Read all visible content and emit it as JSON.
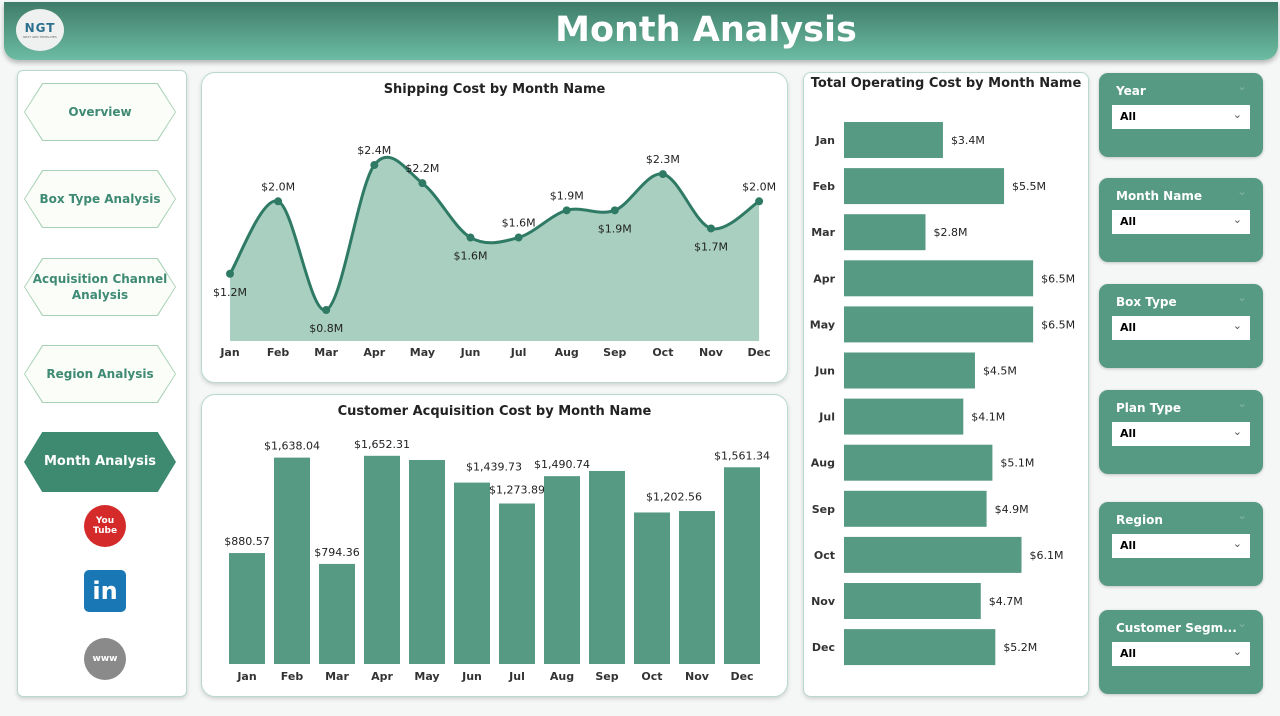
{
  "header": {
    "title": "Month Analysis",
    "logo_text": "NGT"
  },
  "nav": {
    "items": [
      {
        "label": "Overview"
      },
      {
        "label": "Box Type Analysis"
      },
      {
        "label": "Acquisition Channel Analysis"
      },
      {
        "label": "Region Analysis"
      },
      {
        "label": "Month Analysis",
        "active": true
      }
    ],
    "social": [
      {
        "icon": "youtube-icon",
        "label": "You Tube"
      },
      {
        "icon": "linkedin-icon",
        "label": "in"
      },
      {
        "icon": "globe-icon",
        "label": "www"
      }
    ]
  },
  "slicers": [
    {
      "label": "Year",
      "value": "All"
    },
    {
      "label": "Month Name",
      "value": "All"
    },
    {
      "label": "Box Type",
      "value": "All"
    },
    {
      "label": "Plan Type",
      "value": "All"
    },
    {
      "label": "Region",
      "value": "All"
    },
    {
      "label": "Customer Segm...",
      "value": "All"
    }
  ],
  "colors": {
    "accent": "#579a84",
    "area": "#a8cfc0",
    "line": "#2f7a64"
  },
  "chart_data": [
    {
      "type": "area",
      "title": "Shipping Cost by Month Name",
      "categories": [
        "Jan",
        "Feb",
        "Mar",
        "Apr",
        "May",
        "Jun",
        "Jul",
        "Aug",
        "Sep",
        "Oct",
        "Nov",
        "Dec"
      ],
      "values": [
        1.2,
        2.0,
        0.8,
        2.4,
        2.2,
        1.6,
        1.6,
        1.9,
        1.9,
        2.3,
        1.7,
        2.0
      ],
      "labels": [
        "$1.2M",
        "$2.0M",
        "$0.8M",
        "$2.4M",
        "$2.2M",
        "$1.6M",
        "$1.6M",
        "$1.9M",
        "$1.9M",
        "$2.3M",
        "$1.7M",
        "$2.0M"
      ],
      "unit": "M"
    },
    {
      "type": "bar",
      "title": "Customer Acquisition Cost by Month Name",
      "categories": [
        "Jan",
        "Feb",
        "Mar",
        "Apr",
        "May",
        "Jun",
        "Jul",
        "Aug",
        "Sep",
        "Oct",
        "Nov",
        "Dec"
      ],
      "values": [
        880.57,
        1638.04,
        794.36,
        1652.31,
        1619,
        1439.73,
        1273.89,
        1490.74,
        1532,
        1202.56,
        1214,
        1561.34
      ],
      "labels": [
        "$880.57",
        "$1,638.04",
        "$794.36",
        "$1,652.31",
        "",
        "$1,439.73",
        "$1,273.89",
        "$1,490.74",
        "",
        "$1,202.56",
        "",
        "$1,561.34"
      ]
    },
    {
      "type": "bar",
      "orientation": "horizontal",
      "title": "Total Operating Cost by Month Name",
      "categories": [
        "Jan",
        "Feb",
        "Mar",
        "Apr",
        "May",
        "Jun",
        "Jul",
        "Aug",
        "Sep",
        "Oct",
        "Nov",
        "Dec"
      ],
      "values": [
        3.4,
        5.5,
        2.8,
        6.5,
        6.5,
        4.5,
        4.1,
        5.1,
        4.9,
        6.1,
        4.7,
        5.2
      ],
      "labels": [
        "$3.4M",
        "$5.5M",
        "$2.8M",
        "$6.5M",
        "$6.5M",
        "$4.5M",
        "$4.1M",
        "$5.1M",
        "$4.9M",
        "$6.1M",
        "$4.7M",
        "$5.2M"
      ],
      "unit": "M"
    }
  ]
}
